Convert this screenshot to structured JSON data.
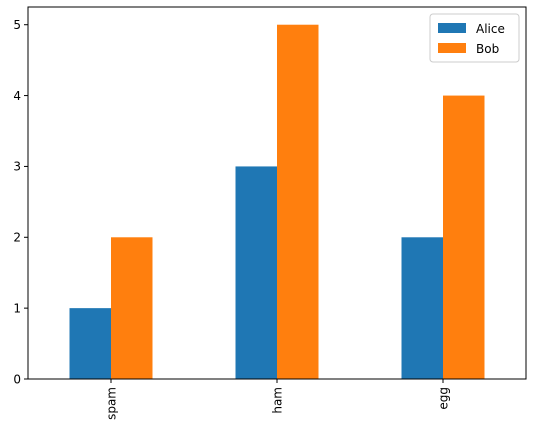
{
  "chart_data": {
    "type": "bar",
    "categories": [
      "spam",
      "ham",
      "egg"
    ],
    "series": [
      {
        "name": "Alice",
        "values": [
          1,
          3,
          2
        ],
        "color": "#1f77b4"
      },
      {
        "name": "Bob",
        "values": [
          2,
          5,
          4
        ],
        "color": "#ff7f0e"
      }
    ],
    "title": "",
    "xlabel": "",
    "ylabel": "",
    "ylim": [
      0,
      5.25
    ],
    "yticks": [
      0,
      1,
      2,
      3,
      4,
      5
    ],
    "grid": false,
    "legend": "top-right",
    "xtick_rotation": "vertical"
  }
}
